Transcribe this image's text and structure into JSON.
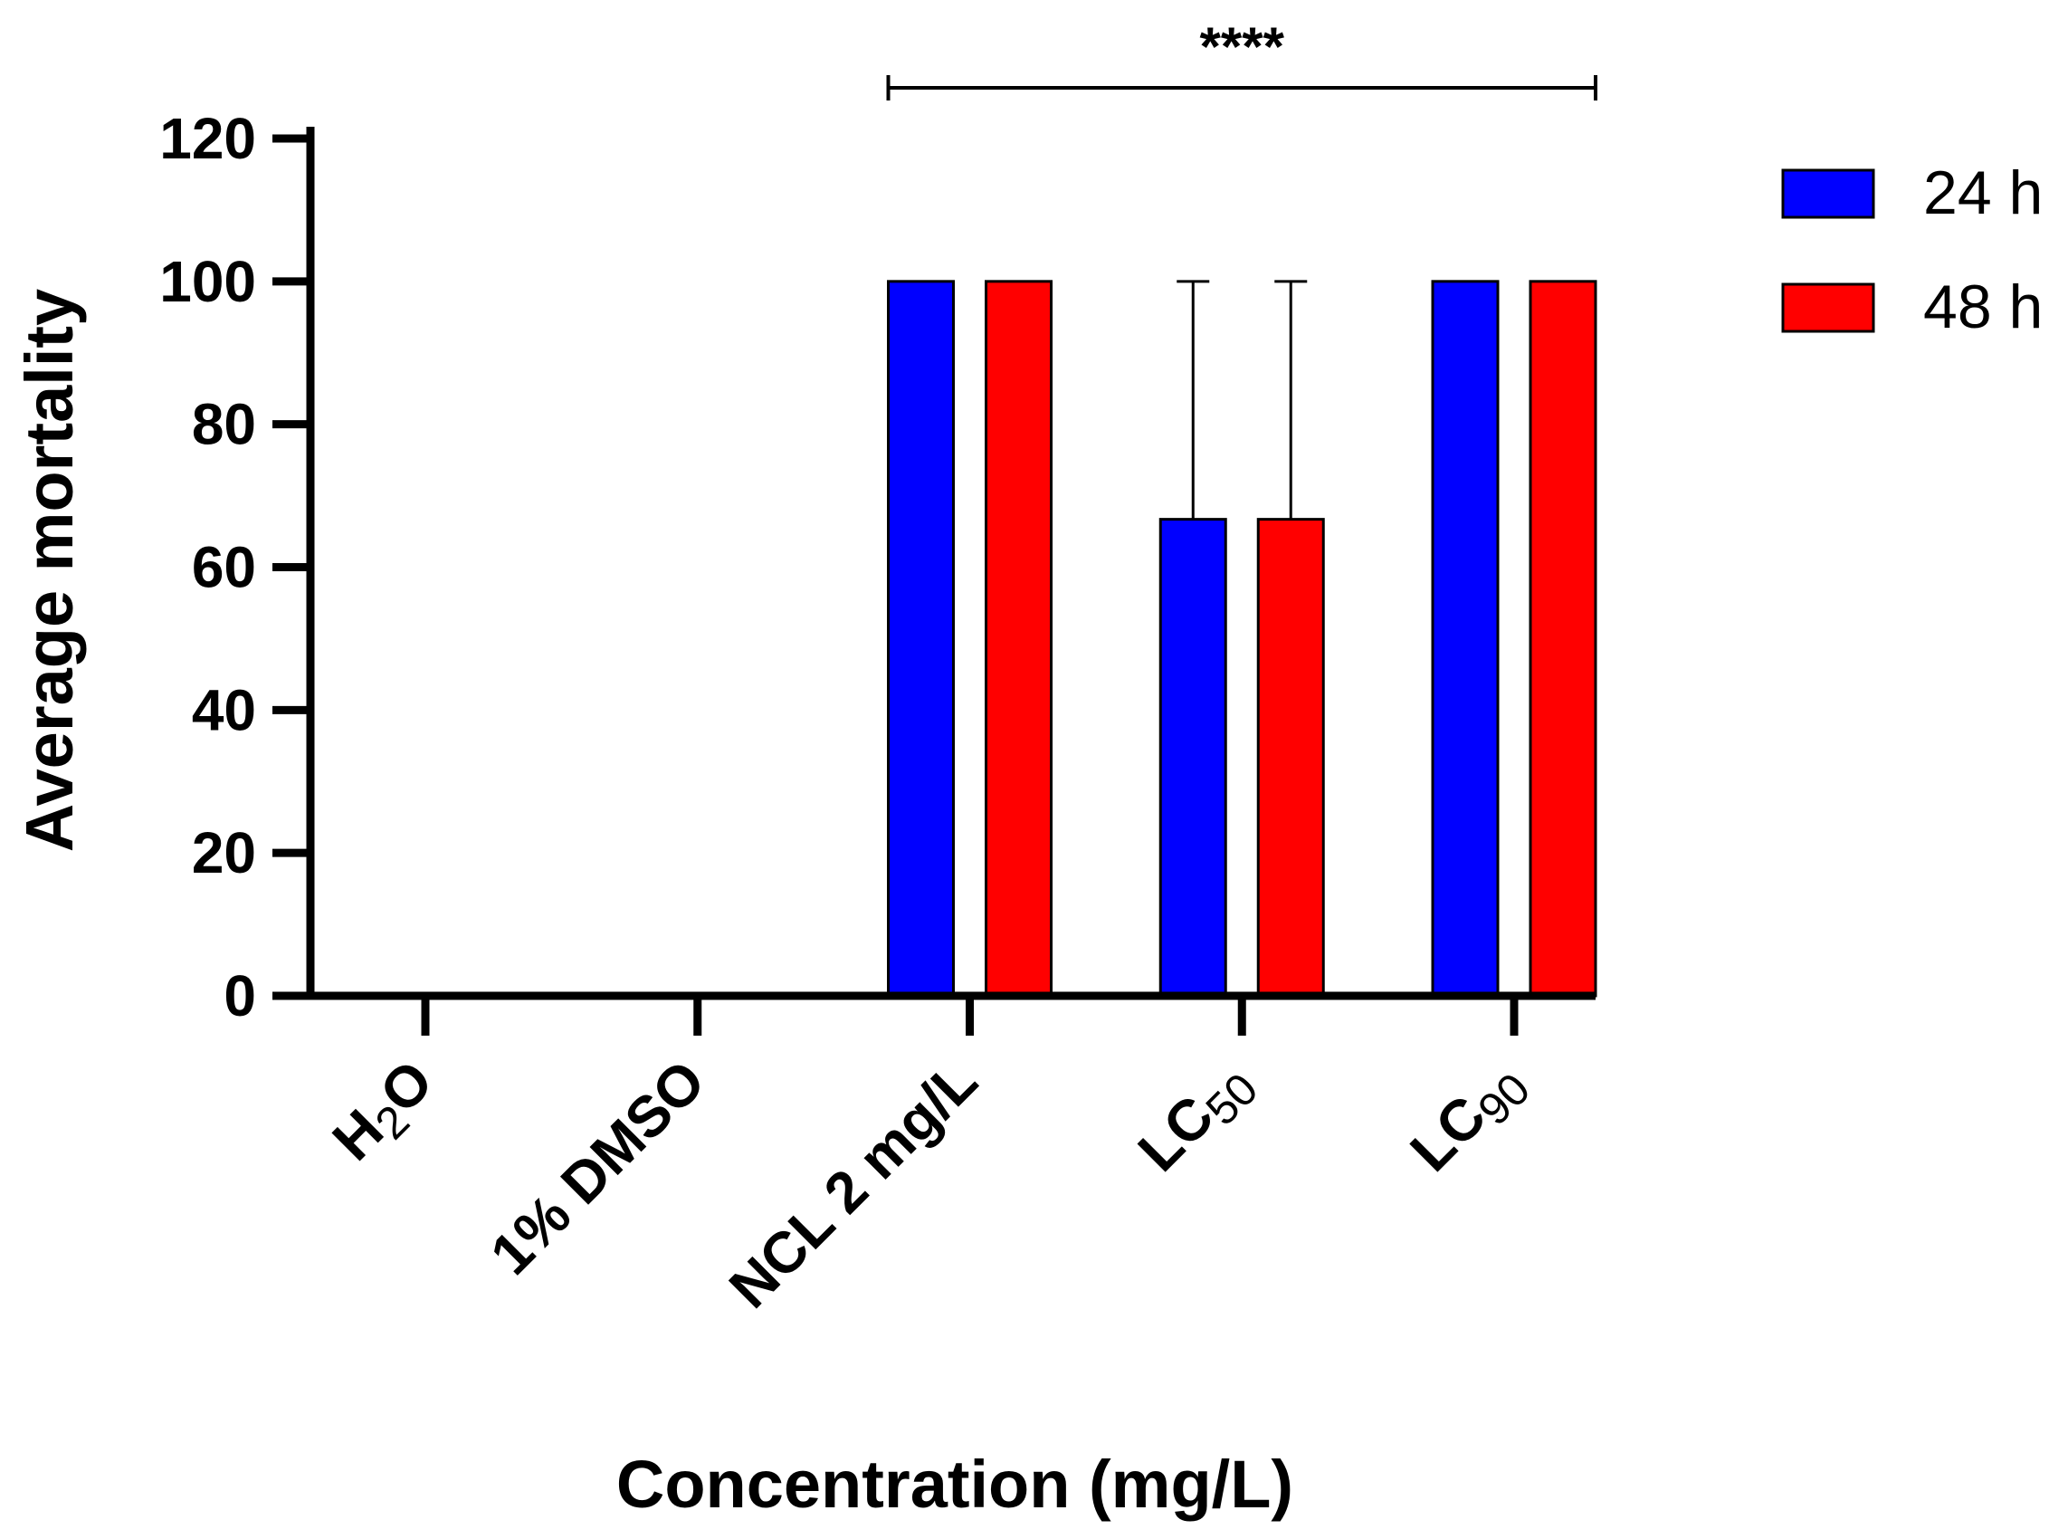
{
  "chart_data": {
    "type": "bar",
    "xlabel": "Concentration (mg/L)",
    "ylabel": "Average mortality",
    "ylim": [
      0,
      120
    ],
    "yticks": [
      0,
      20,
      40,
      60,
      80,
      100,
      120
    ],
    "categories": [
      {
        "main": "H",
        "sub": "2",
        "tail": "O"
      },
      {
        "main": "1% DMSO",
        "sub": "",
        "tail": ""
      },
      {
        "main": "NCL 2 mg/L",
        "sub": "",
        "tail": ""
      },
      {
        "main": "LC",
        "sub": "50",
        "tail": ""
      },
      {
        "main": "LC",
        "sub": "90",
        "tail": ""
      }
    ],
    "series": [
      {
        "name": "24 h",
        "color": "#0000ff",
        "values": [
          0,
          0,
          100,
          66.7,
          100
        ],
        "error_upper": [
          0,
          0,
          0,
          33.3,
          0
        ]
      },
      {
        "name": "48 h",
        "color": "#ff0000",
        "values": [
          0,
          0,
          100,
          66.7,
          100
        ],
        "error_upper": [
          0,
          0,
          0,
          33.3,
          0
        ]
      }
    ],
    "significance": {
      "label": "****",
      "from_category": 2,
      "to_category": 4
    },
    "legend": "top-right"
  }
}
